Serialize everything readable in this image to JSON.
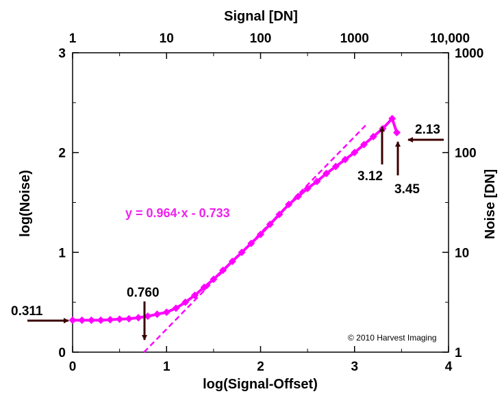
{
  "chart_data": {
    "type": "line",
    "title": "",
    "xlabel": "log(Signal-Offset)",
    "ylabel": "log(Noise)",
    "x2label": "Signal [DN]",
    "y2label": "Noise [DN]",
    "xlim": [
      0,
      4
    ],
    "ylim": [
      0,
      3
    ],
    "x_ticks": [
      "0",
      "1",
      "2",
      "3",
      "4"
    ],
    "y_ticks": [
      "0",
      "1",
      "2",
      "3"
    ],
    "x2_ticks": [
      "1",
      "10",
      "100",
      "1000",
      "10,000"
    ],
    "y2_ticks": [
      "1",
      "10",
      "100",
      "1000"
    ],
    "series": [
      {
        "color": "#ff00ff",
        "x": [
          0,
          0.1,
          0.2,
          0.3,
          0.4,
          0.5,
          0.6,
          0.7,
          0.8,
          0.9,
          1.0,
          1.1,
          1.2,
          1.3,
          1.4,
          1.5,
          1.6,
          1.7,
          1.8,
          1.9,
          2.0,
          2.1,
          2.2,
          2.3,
          2.4,
          2.5,
          2.6,
          2.7,
          2.8,
          2.9,
          3.0,
          3.1,
          3.2,
          3.3,
          3.4,
          3.45
        ],
        "y": [
          0.32,
          0.32,
          0.32,
          0.32,
          0.325,
          0.33,
          0.335,
          0.345,
          0.36,
          0.38,
          0.4,
          0.44,
          0.5,
          0.57,
          0.65,
          0.73,
          0.82,
          0.91,
          1.0,
          1.09,
          1.18,
          1.28,
          1.38,
          1.48,
          1.56,
          1.64,
          1.71,
          1.79,
          1.86,
          1.93,
          2.0,
          2.08,
          2.16,
          2.24,
          2.34,
          2.2
        ]
      }
    ],
    "fit_line": {
      "slope": 0.964,
      "intercept": -0.733,
      "x_range": [
        0.76,
        3.12
      ],
      "style": "dashed"
    },
    "equation_label": "y = 0.964·x - 0.733",
    "annotations": [
      {
        "text": "0.311",
        "x": 0,
        "y": 0.311
      },
      {
        "text": "0.760",
        "x": 0.76,
        "y": 0
      },
      {
        "text": "3.12",
        "x": 3.12,
        "y": 2.2
      },
      {
        "text": "3.45",
        "x": 3.45,
        "y": 2.05
      },
      {
        "text": "2.13",
        "x": 3.45,
        "y": 2.13
      }
    ],
    "copyright": "© 2010 Harvest Imaging",
    "grid": false,
    "colors": {
      "series": "#ff00ff",
      "arrows": "#3a0000",
      "equation": "#ee22ee"
    }
  }
}
